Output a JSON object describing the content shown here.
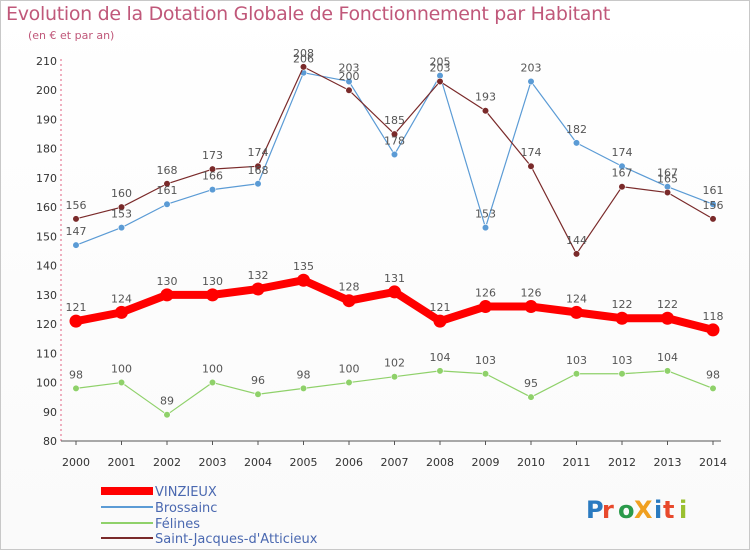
{
  "chart_data": {
    "type": "line",
    "title": "Evolution de la Dotation Globale de Fonctionnement par Habitant",
    "subtitle": "(en € et par an)",
    "xlabel": "",
    "ylabel": "",
    "ylim": [
      80,
      210
    ],
    "yticks": [
      80,
      90,
      100,
      110,
      120,
      130,
      140,
      150,
      160,
      170,
      180,
      190,
      200,
      210
    ],
    "grid": false,
    "legend_position": "bottom-left",
    "x": [
      "2000",
      "2001",
      "2002",
      "2003",
      "2004",
      "2005",
      "2006",
      "2007",
      "2008",
      "2009",
      "2010",
      "2011",
      "2012",
      "2013",
      "2014"
    ],
    "series": [
      {
        "name": "VINZIEUX",
        "color": "#ff0000",
        "values": [
          121,
          124,
          130,
          130,
          132,
          135,
          128,
          131,
          121,
          126,
          126,
          124,
          122,
          122,
          118
        ]
      },
      {
        "name": "Brossainc",
        "color": "#5b9bd5",
        "values": [
          147,
          153,
          161,
          166,
          168,
          206,
          203,
          178,
          205,
          153,
          203,
          182,
          174,
          167,
          161
        ]
      },
      {
        "name": "Félines",
        "color": "#8fd16a",
        "values": [
          98,
          100,
          89,
          100,
          96,
          98,
          100,
          102,
          104,
          103,
          95,
          103,
          103,
          104,
          98
        ]
      },
      {
        "name": "Saint-Jacques-d'Atticieux",
        "color": "#7a2a2a",
        "values": [
          156,
          160,
          168,
          173,
          174,
          208,
          200,
          185,
          203,
          193,
          174,
          144,
          167,
          165,
          156
        ]
      }
    ]
  },
  "logo": {
    "text": "ProXiti"
  }
}
